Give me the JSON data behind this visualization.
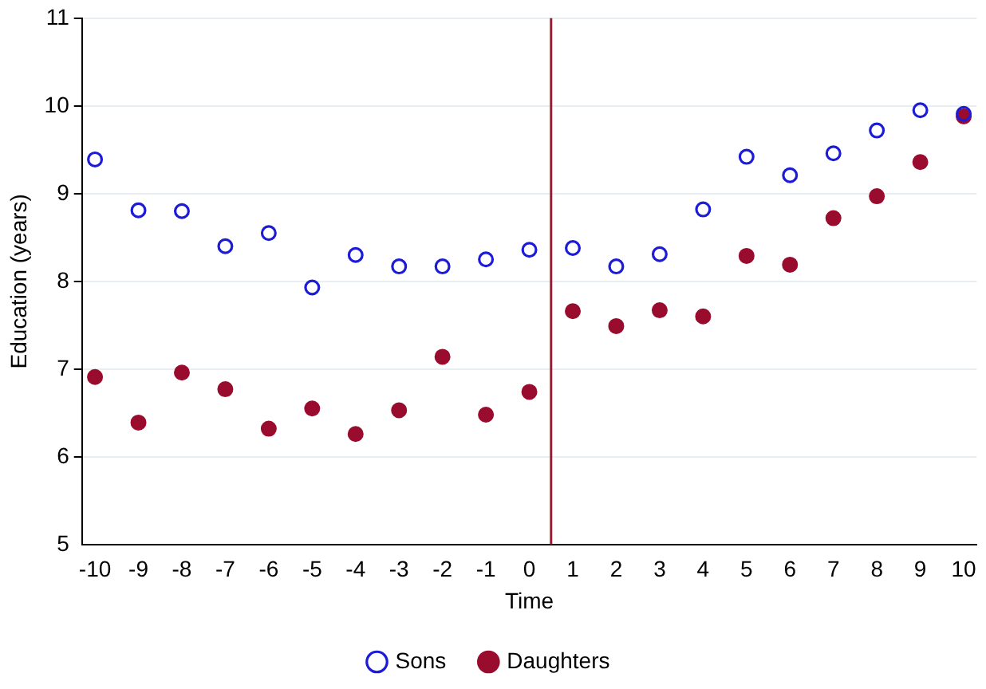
{
  "chart_data": {
    "type": "scatter",
    "xlabel": "Time",
    "ylabel": "Education (years)",
    "x": [
      -10,
      -9,
      -8,
      -7,
      -6,
      -5,
      -4,
      -3,
      -2,
      -1,
      0,
      1,
      2,
      3,
      4,
      5,
      6,
      7,
      8,
      9,
      10
    ],
    "series": [
      {
        "name": "Sons",
        "color": "#1c1cd8",
        "values": [
          9.39,
          8.81,
          8.8,
          8.4,
          8.55,
          7.93,
          8.3,
          8.17,
          8.17,
          8.25,
          8.36,
          8.38,
          8.17,
          8.31,
          8.82,
          9.42,
          9.21,
          9.46,
          9.72,
          9.95,
          9.91
        ]
      },
      {
        "name": "Daughters",
        "color": "#990c2e",
        "values": [
          6.91,
          6.39,
          6.96,
          6.77,
          6.32,
          6.55,
          6.26,
          6.53,
          7.14,
          6.48,
          6.74,
          7.66,
          7.49,
          7.67,
          7.6,
          8.29,
          8.19,
          8.72,
          8.97,
          9.36,
          9.88
        ]
      }
    ],
    "xlim": [
      -10.3,
      10.3
    ],
    "xticks": [
      -10,
      -9,
      -8,
      -7,
      -6,
      -5,
      -4,
      -3,
      -2,
      -1,
      0,
      1,
      2,
      3,
      4,
      5,
      6,
      7,
      8,
      9,
      10
    ],
    "ylim": [
      5,
      11
    ],
    "yticks": [
      5,
      6,
      7,
      8,
      9,
      10,
      11
    ],
    "ref_lines": [
      {
        "axis": "x",
        "value": 0.5,
        "color": "#a3172f"
      }
    ],
    "grid": "y",
    "legend": "bottom",
    "marker": "circle"
  }
}
